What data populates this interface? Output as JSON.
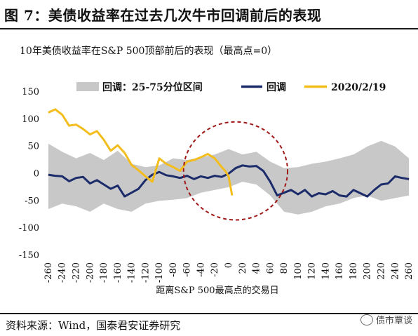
{
  "figure": {
    "title": "图 7：美债收益率在过去几次牛市回调前后的表现",
    "source": "资料来源：Wind，国泰君安证券研究",
    "watermark": "债市覃谈"
  },
  "colors": {
    "band": "#c8c8c8",
    "median": "#1c2c6b",
    "current": "#f2bd1d",
    "circle": "#a01818",
    "rule": "#1a1a1a"
  },
  "chart_data": {
    "type": "line",
    "title": "10年美债收益率在S&P 500顶部前后的表现（最高点=0）",
    "xlabel": "距离S&P 500最高点的交易日",
    "ylabel": "",
    "xlim": [
      -265,
      265
    ],
    "ylim": [
      -150,
      150
    ],
    "yticks": [
      150,
      100,
      50,
      0,
      -50,
      -100,
      -150
    ],
    "xticks": [
      -260,
      -240,
      -220,
      -200,
      -180,
      -160,
      -140,
      -120,
      -100,
      -80,
      -60,
      -40,
      -20,
      0,
      20,
      40,
      60,
      80,
      100,
      120,
      140,
      160,
      180,
      200,
      220,
      240,
      260
    ],
    "legend": {
      "position": "top",
      "labels": [
        "回调：25-75分位区间",
        "回调",
        "2020/2/19"
      ]
    },
    "band": {
      "name": "回调：25-75分位区间",
      "x": [
        -260,
        -240,
        -220,
        -200,
        -180,
        -160,
        -140,
        -120,
        -100,
        -80,
        -60,
        -40,
        -20,
        0,
        20,
        40,
        60,
        80,
        100,
        120,
        140,
        160,
        180,
        200,
        220,
        240,
        260
      ],
      "upper": [
        55,
        40,
        28,
        38,
        25,
        42,
        18,
        12,
        15,
        28,
        25,
        30,
        35,
        45,
        35,
        40,
        22,
        10,
        12,
        18,
        22,
        28,
        35,
        50,
        60,
        50,
        28
      ],
      "lower": [
        -65,
        -55,
        -60,
        -70,
        -55,
        -65,
        -70,
        -55,
        -50,
        -48,
        -45,
        -35,
        -30,
        -25,
        -15,
        -20,
        -40,
        -70,
        -75,
        -70,
        -60,
        -55,
        -45,
        -40,
        -50,
        -45,
        -40
      ]
    },
    "series": [
      {
        "name": "回调",
        "x": [
          -260,
          -250,
          -240,
          -230,
          -220,
          -210,
          -200,
          -190,
          -180,
          -170,
          -160,
          -150,
          -140,
          -130,
          -120,
          -110,
          -100,
          -90,
          -80,
          -70,
          -60,
          -50,
          -40,
          -30,
          -20,
          -10,
          0,
          10,
          20,
          30,
          40,
          50,
          60,
          70,
          80,
          90,
          100,
          110,
          120,
          130,
          140,
          150,
          160,
          170,
          180,
          190,
          200,
          210,
          220,
          230,
          240,
          250,
          260
        ],
        "values": [
          -2,
          -4,
          -5,
          -14,
          -8,
          -6,
          -18,
          -12,
          -20,
          -28,
          -22,
          -42,
          -35,
          -28,
          -12,
          -2,
          3,
          -3,
          -5,
          -8,
          -4,
          -10,
          -5,
          -8,
          -4,
          -6,
          0,
          10,
          15,
          13,
          14,
          5,
          -15,
          -40,
          -35,
          -30,
          -38,
          -30,
          -42,
          -36,
          -38,
          -32,
          -40,
          -42,
          -30,
          -36,
          -42,
          -30,
          -20,
          -18,
          -5,
          -8,
          -10
        ]
      },
      {
        "name": "2020/2/19",
        "x": [
          -260,
          -250,
          -240,
          -230,
          -220,
          -210,
          -200,
          -190,
          -180,
          -170,
          -160,
          -150,
          -140,
          -130,
          -120,
          -110,
          -100,
          -90,
          -80,
          -70,
          -60,
          -50,
          -40,
          -30,
          -20,
          -10,
          -5,
          0,
          5
        ],
        "values": [
          112,
          118,
          108,
          88,
          90,
          82,
          72,
          78,
          62,
          42,
          52,
          38,
          16,
          6,
          -5,
          -15,
          28,
          18,
          12,
          5,
          22,
          25,
          30,
          36,
          28,
          12,
          5,
          -5,
          -40
        ]
      }
    ],
    "annotation": {
      "shape": "dashed-ellipse",
      "x_center": 10,
      "y_center": 5,
      "x_radius": 75,
      "y_radius": 90
    }
  }
}
